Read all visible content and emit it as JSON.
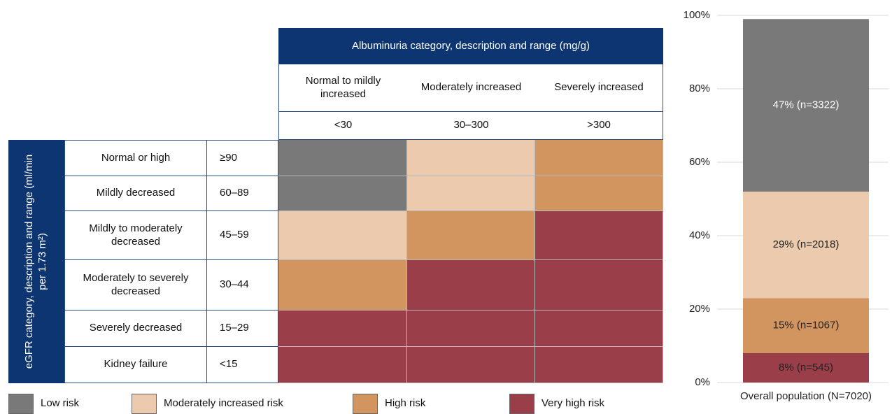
{
  "table": {
    "column_header": "Albuminuria category, description and range (mg/g)",
    "columns": [
      {
        "description": "Normal to mildly increased",
        "range": "<30"
      },
      {
        "description": "Moderately increased",
        "range": "30–300"
      },
      {
        "description": "Severely increased",
        "range": ">300"
      }
    ],
    "row_header": "eGFR category, description and range (ml/min per 1.73 m²)",
    "rows": [
      {
        "description": "Normal or high",
        "range": "≥90",
        "risk": [
          0,
          1,
          2
        ]
      },
      {
        "description": "Mildly decreased",
        "range": "60–89",
        "risk": [
          0,
          1,
          2
        ]
      },
      {
        "description": "Mildly to moderately decreased",
        "range": "45–59",
        "risk": [
          1,
          2,
          3
        ]
      },
      {
        "description": "Moderately to severely decreased",
        "range": "30–44",
        "risk": [
          2,
          3,
          3
        ]
      },
      {
        "description": "Severely decreased",
        "range": "15–29",
        "risk": [
          3,
          3,
          3
        ]
      },
      {
        "description": "Kidney failure",
        "range": "<15",
        "risk": [
          3,
          3,
          3
        ]
      }
    ]
  },
  "chart_data": {
    "type": "bar",
    "stacked": true,
    "categories": [
      "Overall population (N=7020)"
    ],
    "series": [
      {
        "name": "Low risk",
        "color": "#797979",
        "values": [
          47
        ],
        "value_labels": [
          "47% (n=3322)"
        ]
      },
      {
        "name": "Moderately increased risk",
        "color": "#ebcaae",
        "values": [
          29
        ],
        "value_labels": [
          "29% (n=2018)"
        ]
      },
      {
        "name": "High risk",
        "color": "#d3955f",
        "values": [
          15
        ],
        "value_labels": [
          "15% (n=1067)"
        ]
      },
      {
        "name": "Very high risk",
        "color": "#9a3f4a",
        "values": [
          8
        ],
        "value_labels": [
          "8% (n=545)"
        ]
      }
    ],
    "ylim": [
      0,
      100
    ],
    "yticks": [
      {
        "value": 0,
        "label": "0%"
      },
      {
        "value": 20,
        "label": "20%"
      },
      {
        "value": 40,
        "label": "40%"
      },
      {
        "value": 60,
        "label": "60%"
      },
      {
        "value": 80,
        "label": "80%"
      },
      {
        "value": 100,
        "label": "100%"
      }
    ],
    "grid": true
  }
}
